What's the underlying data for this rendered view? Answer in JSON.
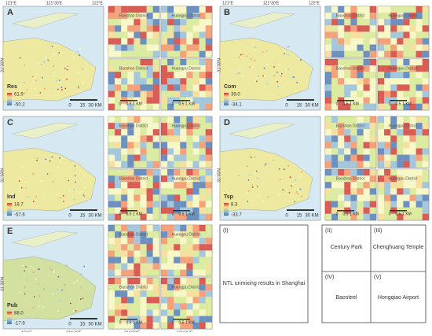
{
  "panels": [
    {
      "letter": "A",
      "variable": "Res",
      "legend_max": "61.9",
      "legend_min": "-50.2"
    },
    {
      "letter": "B",
      "variable": "Com",
      "legend_max": "39.0",
      "legend_min": "-34.1"
    },
    {
      "letter": "C",
      "variable": "Ind",
      "legend_max": "18.7",
      "legend_min": "-57.6"
    },
    {
      "letter": "D",
      "variable": "Tsp",
      "legend_max": "8.3",
      "legend_min": "-33.7"
    },
    {
      "letter": "E",
      "variable": "Pub",
      "legend_max": "88.0",
      "legend_min": "-17.9"
    }
  ],
  "scale_main": [
    "0",
    "15",
    "30 KM"
  ],
  "scale_inset": [
    "0",
    "0.5",
    "1 KM"
  ],
  "lon_labels": [
    "121°E",
    "121°30'E",
    "122°E",
    "121°36'E"
  ],
  "lat_labels": [
    "31°N",
    "31°30'N"
  ],
  "district_labels": [
    "Huangpu District",
    "Baoshan District"
  ],
  "key": [
    {
      "id": "(I)",
      "text": "NTL unmixing results in Shanghai"
    },
    {
      "id": "(II)",
      "text": "Century Park"
    },
    {
      "id": "(III)",
      "text": "Chenghuang Temple"
    },
    {
      "id": "(IV)",
      "text": "Baosteel"
    },
    {
      "id": "(V)",
      "text": "Hongqiao Airport"
    }
  ]
}
